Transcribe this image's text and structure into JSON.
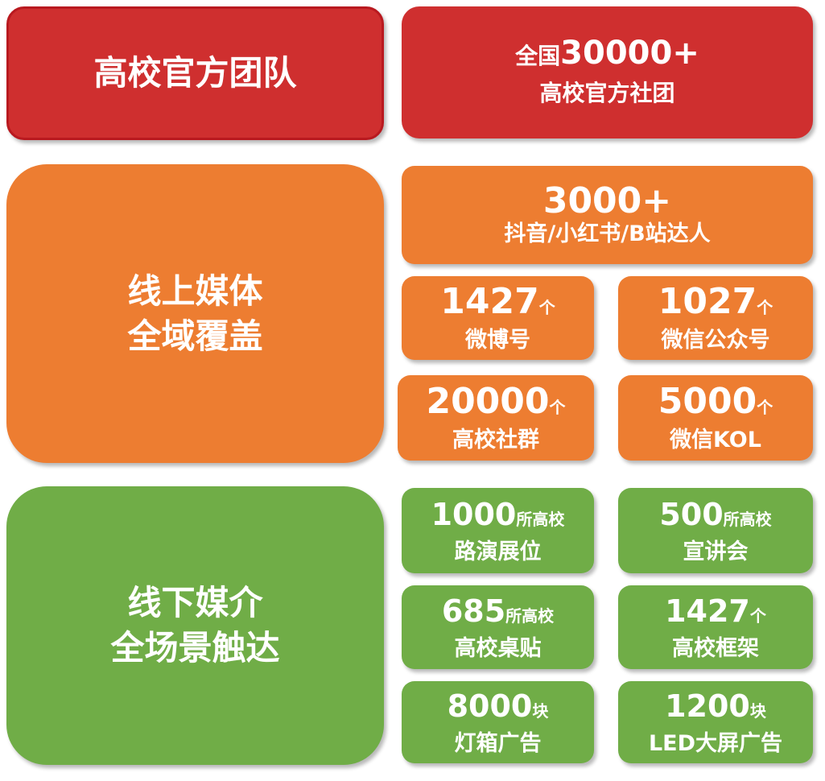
{
  "colors": {
    "red": "#cf2f2f",
    "orange": "#ed7d31",
    "green": "#70ad47"
  },
  "team": {
    "title": "高校官方团队",
    "stat_prefix": "全国",
    "stat_number": "30000+",
    "stat_label": "高校官方社团"
  },
  "online": {
    "title_line1": "线上媒体",
    "title_line2": "全域覆盖",
    "top": {
      "number": "3000+",
      "label": "抖音/小红书/B站达人"
    },
    "cards": [
      {
        "number": "1427",
        "unit": "个",
        "label": "微博号"
      },
      {
        "number": "1027",
        "unit": "个",
        "label": "微信公众号"
      },
      {
        "number": "20000",
        "unit": "个",
        "label": "高校社群"
      },
      {
        "number": "5000",
        "unit": "个",
        "label": "微信KOL"
      }
    ]
  },
  "offline": {
    "title_line1": "线下媒介",
    "title_line2": "全场景触达",
    "cards": [
      {
        "number": "1000",
        "unit": "所高校",
        "label": "路演展位"
      },
      {
        "number": "500",
        "unit": "所高校",
        "label": "宣讲会"
      },
      {
        "number": "685",
        "unit": "所高校",
        "label": "高校桌贴"
      },
      {
        "number": "1427",
        "unit": "个",
        "label": "高校框架"
      },
      {
        "number": "8000",
        "unit": "块",
        "label": "灯箱广告"
      },
      {
        "number": "1200",
        "unit": "块",
        "label": "LED大屏广告"
      }
    ]
  }
}
